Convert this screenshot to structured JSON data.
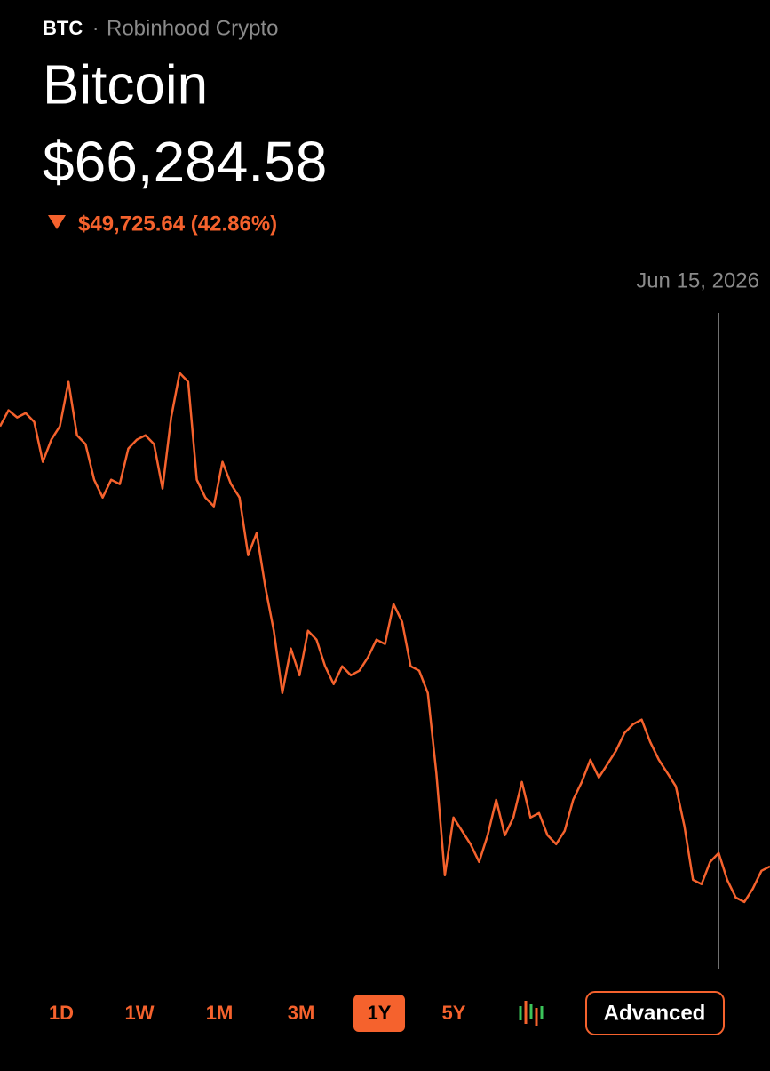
{
  "header": {
    "ticker": "BTC",
    "separator": "·",
    "source": "Robinhood Crypto",
    "name": "Bitcoin",
    "price": "$66,284.58",
    "change": "$49,725.64 (42.86%)"
  },
  "chart_data": {
    "type": "line",
    "color": "#f5622d",
    "categories": [
      null,
      null,
      null,
      null,
      null,
      null,
      null,
      null,
      null,
      null,
      null,
      null,
      null,
      null,
      null,
      null,
      null,
      null,
      null,
      null,
      null,
      null,
      null,
      null,
      null,
      null,
      null,
      null,
      null,
      null,
      null,
      null,
      null,
      null,
      null,
      null,
      null,
      null,
      null,
      null,
      null,
      null,
      null,
      null,
      null,
      null,
      null,
      null,
      null,
      null,
      null,
      null,
      null,
      null,
      null,
      null,
      null,
      null,
      null,
      null,
      null,
      null,
      null,
      null,
      null,
      null,
      null,
      null,
      null,
      null,
      null,
      null,
      null,
      null,
      null,
      null,
      null,
      null,
      null,
      null,
      null,
      null,
      null,
      null,
      "Jun 15, 2026",
      null,
      null,
      null,
      null,
      null,
      null
    ],
    "values": [
      116010,
      117880,
      117050,
      117560,
      116530,
      111870,
      114460,
      116010,
      121190,
      114970,
      113940,
      109790,
      107720,
      109790,
      109280,
      113420,
      114460,
      114970,
      113940,
      108760,
      117050,
      122230,
      121190,
      109790,
      107720,
      106690,
      111870,
      109280,
      107720,
      100990,
      103580,
      97360,
      92180,
      84930,
      90110,
      87000,
      92180,
      91150,
      88040,
      85970,
      88040,
      87000,
      87520,
      89070,
      91150,
      90630,
      95290,
      93220,
      88040,
      87520,
      84930,
      75610,
      63690,
      70430,
      68870,
      67320,
      65250,
      68350,
      72500,
      68350,
      70430,
      74570,
      70430,
      70940,
      68350,
      67320,
      68870,
      72500,
      74570,
      77160,
      75090,
      76640,
      78200,
      80270,
      81300,
      81830,
      79230,
      77160,
      75610,
      74050,
      69390,
      63170,
      62660,
      65250,
      66284.58,
      63170,
      61100,
      60580,
      62140,
      64210,
      64730
    ],
    "ylim": [
      52800,
      128400
    ]
  },
  "ranges": [
    "1D",
    "1W",
    "1M",
    "3M",
    "1Y",
    "5Y"
  ],
  "selected_range": 4,
  "advanced": "Advanced"
}
